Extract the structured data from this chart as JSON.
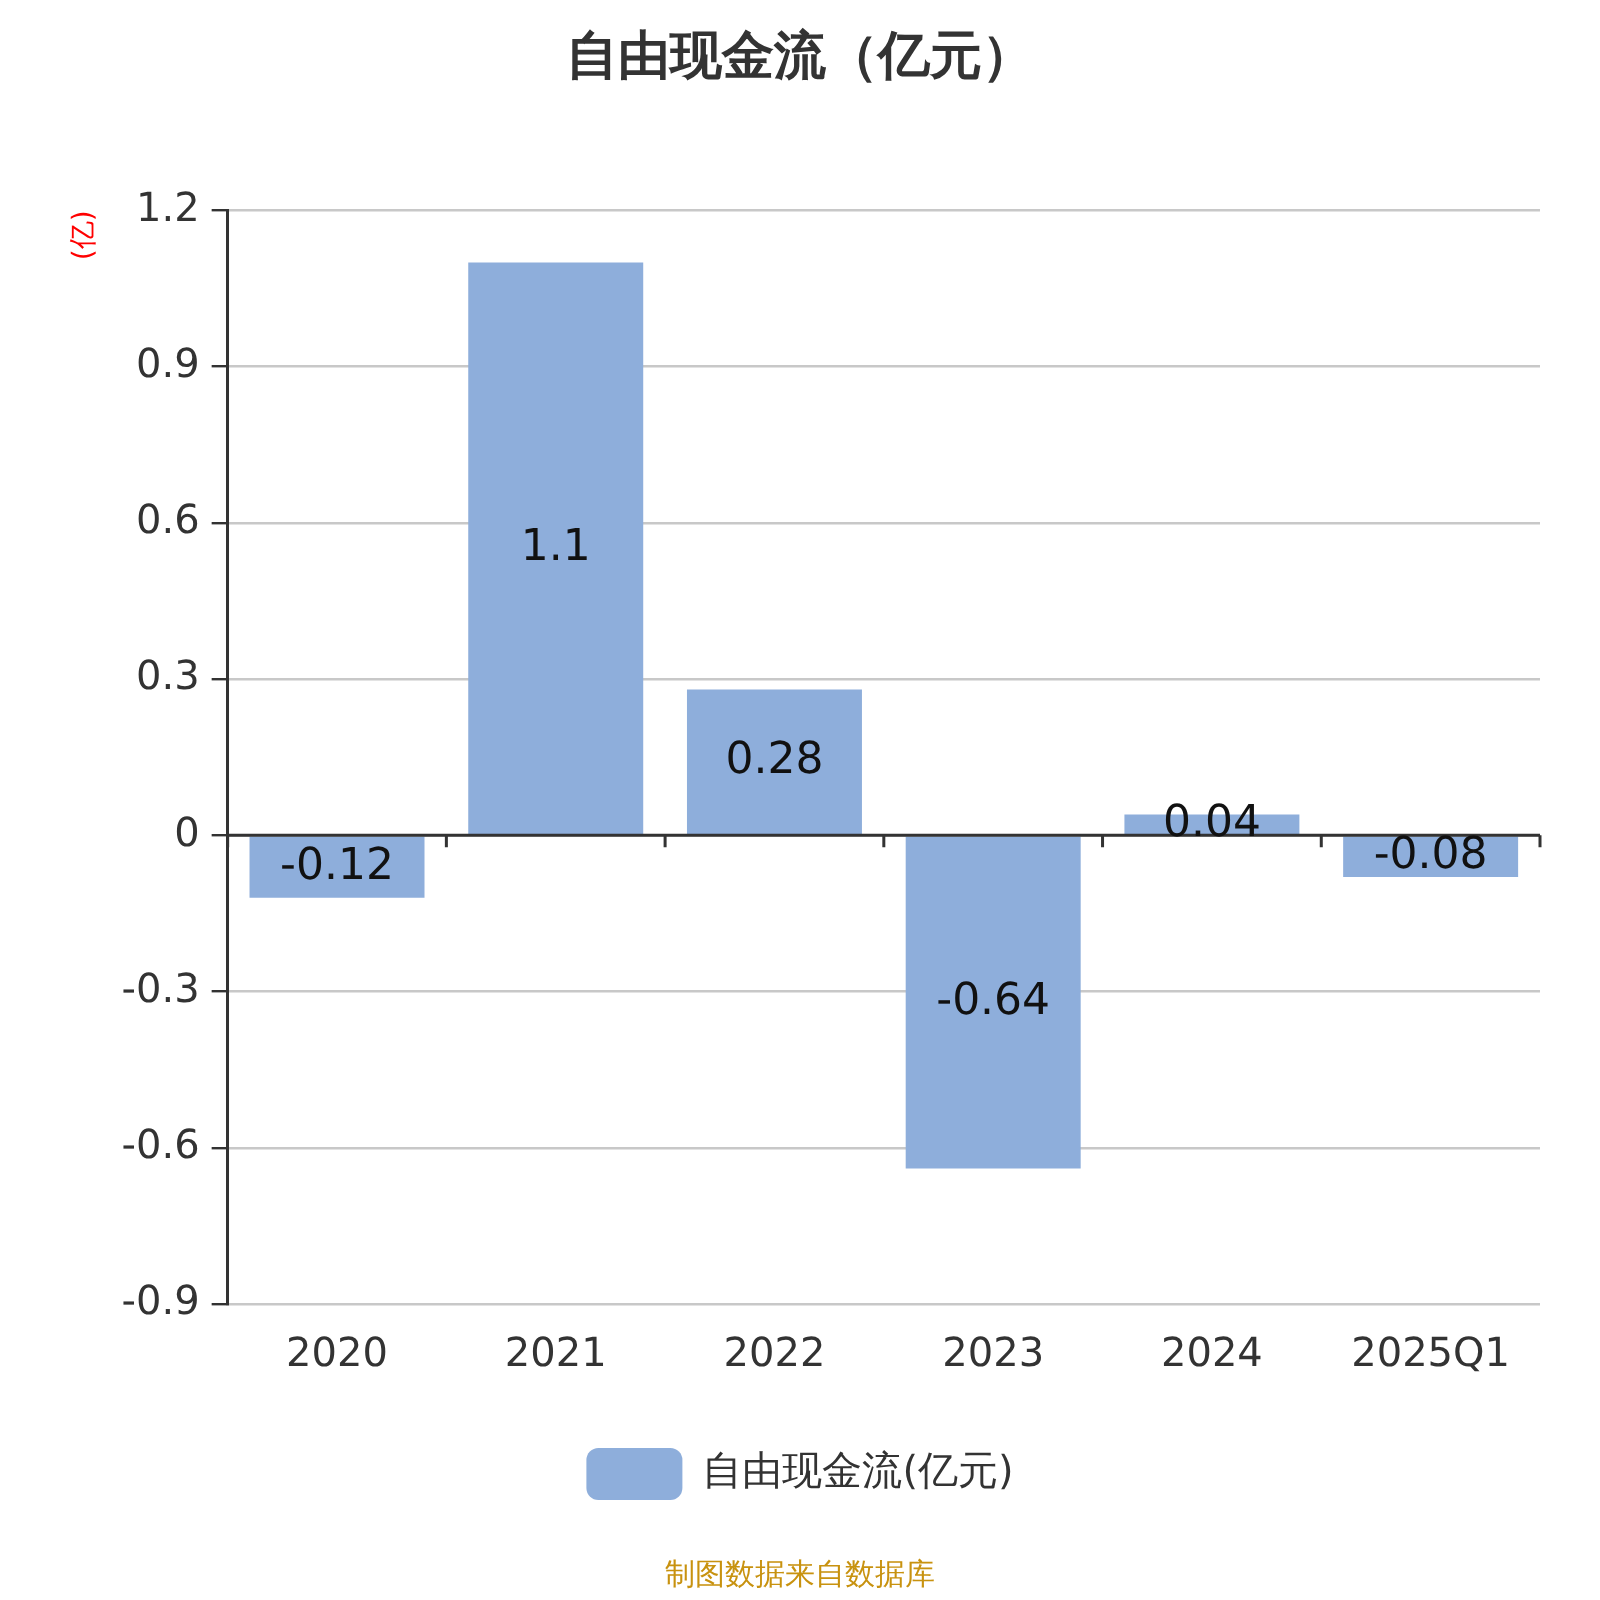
{
  "chart_data": {
    "type": "bar",
    "title": "自由现金流（亿元）",
    "ylabel": "(亿)",
    "categories": [
      "2020",
      "2021",
      "2022",
      "2023",
      "2024",
      "2025Q1"
    ],
    "series": [
      {
        "name": "自由现金流(亿元)",
        "color": "#8eaedb",
        "values": [
          -0.12,
          1.1,
          0.28,
          -0.64,
          0.04,
          -0.08
        ]
      }
    ],
    "ylim": [
      -0.9,
      1.2
    ],
    "yticks": [
      -0.9,
      -0.6,
      -0.3,
      0,
      0.3,
      0.6,
      0.9,
      1.2
    ],
    "grid": "y",
    "legend": "bottom",
    "data_labels": true,
    "annotations": [
      "制图数据来自数据库"
    ]
  }
}
